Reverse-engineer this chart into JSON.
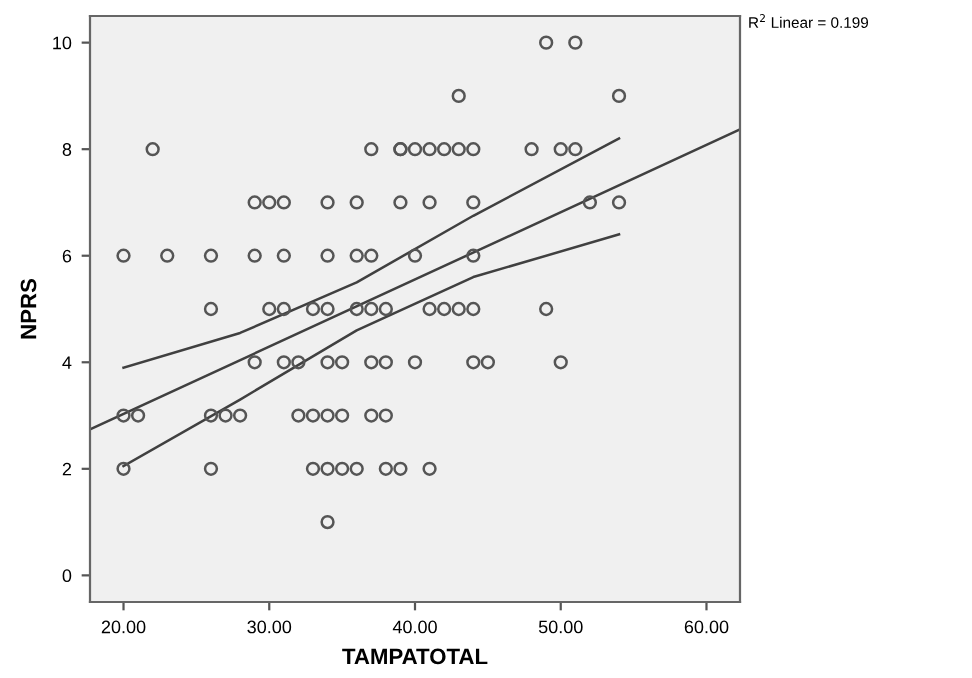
{
  "chart_data": {
    "type": "scatter",
    "xlabel": "TAMPATOTAL",
    "ylabel": "NPRS",
    "xlim": [
      17.7,
      62.3
    ],
    "ylim": [
      -0.5,
      10.5
    ],
    "xticks": [
      {
        "value": 20,
        "label": "20.00"
      },
      {
        "value": 30,
        "label": "30.00"
      },
      {
        "value": 40,
        "label": "40.00"
      },
      {
        "value": 50,
        "label": "50.00"
      },
      {
        "value": 60,
        "label": "60.00"
      }
    ],
    "yticks": [
      0,
      2,
      4,
      6,
      8,
      10
    ],
    "grid": false,
    "annotations": [
      "R$^{2}$ Linear = 0.199"
    ],
    "series": [
      {
        "marker": "circle",
        "color": "#555555",
        "x": [
          49,
          51,
          43,
          54,
          22,
          37,
          39,
          39,
          40,
          41,
          42,
          43,
          44,
          48,
          50,
          51,
          29,
          30,
          31,
          34,
          36,
          39,
          41,
          44,
          52,
          54,
          20,
          23,
          26,
          29,
          31,
          34,
          36,
          37,
          40,
          44,
          26,
          30,
          31,
          33,
          34,
          36,
          37,
          38,
          41,
          42,
          43,
          44,
          49,
          29,
          31,
          32,
          34,
          35,
          37,
          38,
          40,
          44,
          45,
          50,
          20,
          21,
          26,
          27,
          28,
          32,
          33,
          34,
          35,
          37,
          38,
          20,
          26,
          33,
          34,
          35,
          36,
          38,
          39,
          41,
          34
        ],
        "values": [
          10,
          10,
          9,
          9,
          8,
          8,
          8,
          8,
          8,
          8,
          8,
          8,
          8,
          8,
          8,
          8,
          7,
          7,
          7,
          7,
          7,
          7,
          7,
          7,
          7,
          7,
          6,
          6,
          6,
          6,
          6,
          6,
          6,
          6,
          6,
          6,
          5,
          5,
          5,
          5,
          5,
          5,
          5,
          5,
          5,
          5,
          5,
          5,
          5,
          4,
          4,
          4,
          4,
          4,
          4,
          4,
          4,
          4,
          4,
          4,
          3,
          3,
          3,
          3,
          3,
          3,
          3,
          3,
          3,
          3,
          3,
          2,
          2,
          2,
          2,
          2,
          2,
          2,
          2,
          2,
          1
        ]
      },
      {
        "type": "line",
        "marker": "none",
        "color": "#404040",
        "x": [
          17.7,
          62.3
        ],
        "values": [
          2.74,
          8.37
        ]
      },
      {
        "type": "line",
        "marker": "none",
        "color": "#404040",
        "x": [
          20,
          28,
          36,
          44,
          54
        ],
        "values": [
          3.9,
          4.55,
          5.5,
          6.75,
          8.2
        ]
      },
      {
        "type": "line",
        "marker": "none",
        "color": "#404040",
        "x": [
          20,
          28,
          36,
          44,
          54
        ],
        "values": [
          2.05,
          3.3,
          4.6,
          5.6,
          6.4
        ]
      }
    ]
  }
}
